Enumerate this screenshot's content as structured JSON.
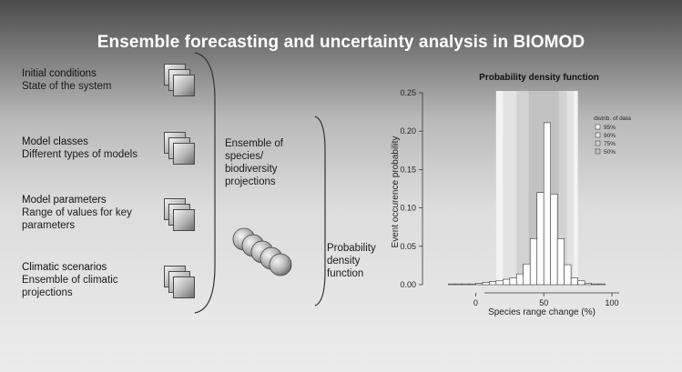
{
  "title": "Ensemble forecasting and uncertainty analysis in BIOMOD",
  "inputs": [
    {
      "heading": "Initial conditions",
      "detail": "State of the system"
    },
    {
      "heading": "Model classes",
      "detail": "Different types of models"
    },
    {
      "heading": "Model parameters",
      "detail": "Range of values for key parameters"
    },
    {
      "heading": "Climatic scenarios",
      "detail": "Ensemble of climatic projections"
    }
  ],
  "ensemble_label": "Ensemble of species/ biodiversity projections",
  "pdf_label": "Probability density function",
  "chart_data": {
    "type": "bar",
    "title": "Probability density function",
    "xlabel": "Species range change (%)",
    "ylabel": "Event  occurence probability",
    "xlim": [
      -35,
      112
    ],
    "ylim": [
      0,
      0.25
    ],
    "x_ticks": [
      0,
      50,
      100
    ],
    "y_ticks": [
      "0.00",
      "0.05",
      "0.10",
      "0.15",
      "0.20",
      "0.25"
    ],
    "bin_edges": [
      -20,
      -15,
      -10,
      -5,
      0,
      5,
      10,
      15,
      20,
      25,
      30,
      35,
      40,
      45,
      50,
      55,
      60,
      65,
      70,
      75,
      80,
      85,
      90,
      95
    ],
    "values": [
      0.001,
      0.001,
      0.001,
      0.001,
      0.002,
      0.003,
      0.004,
      0.005,
      0.007,
      0.009,
      0.014,
      0.027,
      0.06,
      0.12,
      0.211,
      0.118,
      0.06,
      0.026,
      0.009,
      0.005,
      0.002,
      0.001,
      0.001
    ],
    "bands": [
      {
        "name": "95%",
        "from": 15,
        "to": 75,
        "color": "#f3f3f3"
      },
      {
        "name": "90%",
        "from": 20,
        "to": 72,
        "color": "#e3e3e3"
      },
      {
        "name": "75%",
        "from": 30,
        "to": 67,
        "color": "#d2d2d2"
      },
      {
        "name": "50%",
        "from": 39,
        "to": 61,
        "color": "#c2c2c2"
      }
    ],
    "legend_title": "distrib. of data",
    "legend": [
      "95%",
      "90%",
      "75%",
      "50%"
    ],
    "legend_position": "top-right",
    "grid": false
  }
}
